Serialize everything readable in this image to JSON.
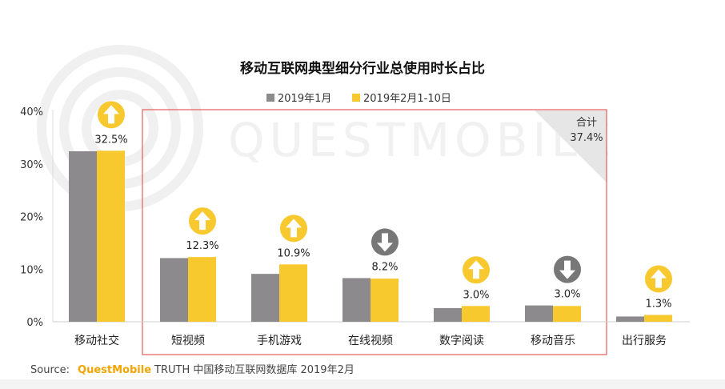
{
  "watermark": "QUESTMOBILE",
  "source": {
    "label": "Source:",
    "brand": "QuestMobile",
    "text": "TRUTH 中国移动互联网数据库 2019年2月"
  },
  "callout": {
    "label": "合计",
    "value": "37.4%"
  },
  "colors": {
    "series_a": "#8c8a8c",
    "series_b": "#f7c92f",
    "arrow_up": "#f7c92f",
    "arrow_down": "#777777",
    "highlight_box": "#e23b3b"
  },
  "chart_data": {
    "type": "bar",
    "title": "移动互联网典型细分行业总使用时长占比",
    "categories": [
      "移动社交",
      "短视频",
      "手机游戏",
      "在线视频",
      "数字阅读",
      "移动音乐",
      "出行服务"
    ],
    "series": [
      {
        "name": "2019年1月",
        "values": [
          32.4,
          12.1,
          9.1,
          8.3,
          2.6,
          3.1,
          1.0
        ]
      },
      {
        "name": "2019年2月1-10日",
        "values": [
          32.5,
          12.3,
          10.9,
          8.2,
          3.0,
          3.0,
          1.3
        ]
      }
    ],
    "value_labels": [
      "32.5%",
      "12.3%",
      "10.9%",
      "8.2%",
      "3.0%",
      "3.0%",
      "1.3%"
    ],
    "trend": [
      "up",
      "up",
      "up",
      "down",
      "up",
      "down",
      "up"
    ],
    "y_ticks": [
      "0%",
      "10%",
      "20%",
      "30%",
      "40%"
    ],
    "ylim": [
      0,
      40
    ],
    "legend_position": "top-center",
    "highlight_group": [
      "短视频",
      "手机游戏",
      "在线视频",
      "数字阅读",
      "移动音乐"
    ]
  }
}
